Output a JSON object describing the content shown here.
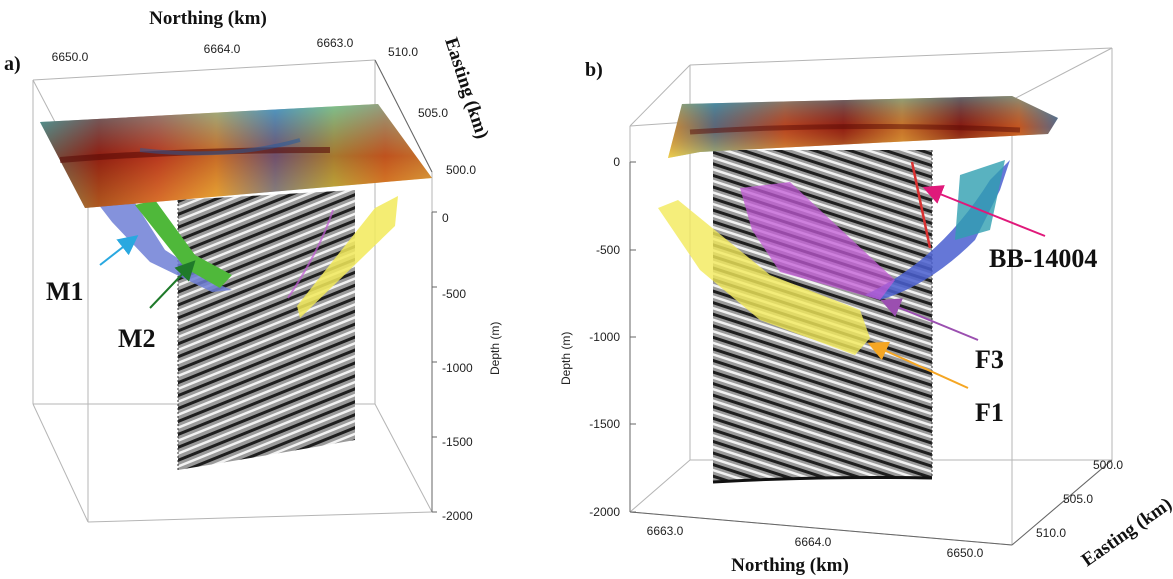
{
  "panel_a": {
    "letter": "a)",
    "northing_title": "Northing (km)",
    "northing_ticks": [
      "6650.0",
      "6664.0",
      "6663.0"
    ],
    "easting_title": "Easting (km)",
    "easting_ticks": [
      "510.0",
      "505.0",
      "500.0"
    ],
    "depth_title": "Depth (m)",
    "depth_ticks": [
      "0",
      "-500",
      "-1000",
      "-1500",
      "-2000"
    ],
    "labels": {
      "m1": "M1",
      "m2": "M2"
    }
  },
  "panel_b": {
    "letter": "b)",
    "northing_title": "Northing (km)",
    "northing_ticks": [
      "6663.0",
      "6664.0",
      "6650.0"
    ],
    "easting_title": "Easting (km)",
    "easting_ticks": [
      "500.0",
      "505.0",
      "510.0"
    ],
    "depth_title": "Depth (m)",
    "depth_ticks": [
      "0",
      "-500",
      "-1000",
      "-1500",
      "-2000"
    ],
    "labels": {
      "bb": "BB-14004",
      "f3": "F3",
      "f1": "F1"
    }
  },
  "colors": {
    "m1": "#6f7fd6",
    "m2": "#4fb83a",
    "f1": "#f2ea5a",
    "f3": "#c25ad6",
    "arrow_m1": "#29a8e0",
    "arrow_m2": "#1f7a2a",
    "arrow_bb": "#e0197a",
    "arrow_f3": "#9b4fb0",
    "arrow_f1": "#f5a623",
    "borehole": "#d93030"
  }
}
